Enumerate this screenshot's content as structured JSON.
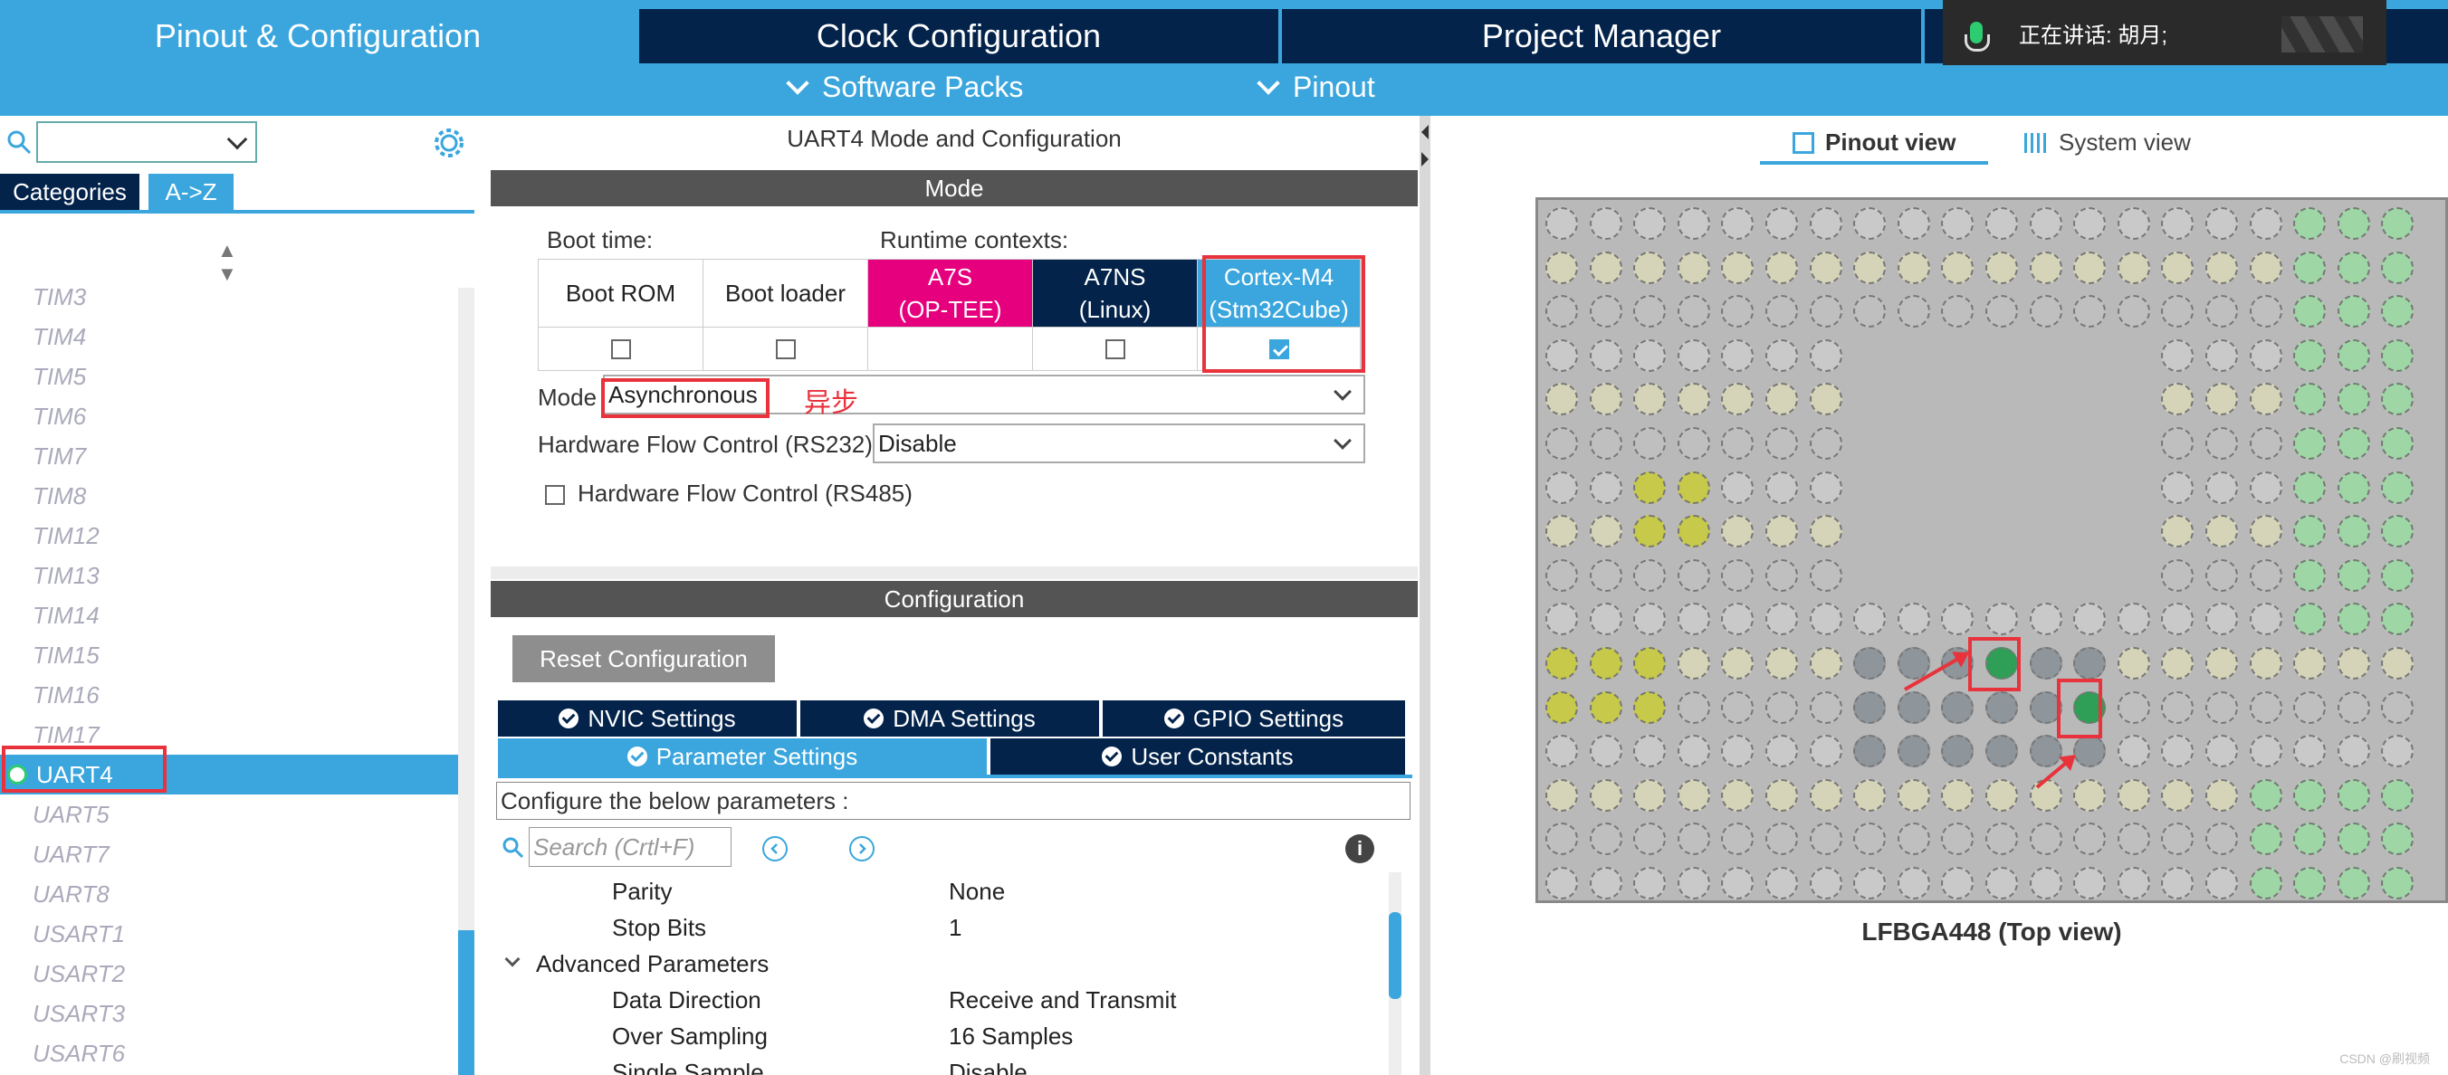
{
  "tabs": [
    "Pinout & Configuration",
    "Clock Configuration",
    "Project Manager"
  ],
  "subtabs": [
    "Software Packs",
    "Pinout"
  ],
  "voice_overlay": "正在讲话: 胡月;",
  "left": {
    "categories_tab": "Categories",
    "az_tab": "A->Z",
    "peripherals": [
      "TIM3",
      "TIM4",
      "TIM5",
      "TIM6",
      "TIM7",
      "TIM8",
      "TIM12",
      "TIM13",
      "TIM14",
      "TIM15",
      "TIM16",
      "TIM17",
      "UART4",
      "UART5",
      "UART7",
      "UART8",
      "USART1",
      "USART2",
      "USART3",
      "USART6"
    ],
    "selected": "UART4"
  },
  "mode_panel": {
    "title": "UART4 Mode and Configuration",
    "mode_header": "Mode",
    "boot_time_label": "Boot time:",
    "runtime_label": "Runtime contexts:",
    "contexts": [
      {
        "line1": "Boot ROM",
        "line2": "",
        "checked": false,
        "has_checkbox": true,
        "color": "#ffffff"
      },
      {
        "line1": "Boot loader",
        "line2": "",
        "checked": false,
        "has_checkbox": true,
        "color": "#ffffff"
      },
      {
        "line1": "A7S",
        "line2": "(OP-TEE)",
        "checked": false,
        "has_checkbox": false,
        "color": "#e6007e"
      },
      {
        "line1": "A7NS",
        "line2": "(Linux)",
        "checked": false,
        "has_checkbox": true,
        "color": "#03234b"
      },
      {
        "line1": "Cortex-M4",
        "line2": "(Stm32Cube)",
        "checked": true,
        "has_checkbox": true,
        "color": "#3aa6dd"
      }
    ],
    "mode_label": "Mode",
    "mode_value": "Asynchronous",
    "mode_annotation": "异步",
    "hw_flow_rs232_label": "Hardware Flow Control (RS232)",
    "hw_flow_rs232_value": "Disable",
    "hw_flow_rs485_label": "Hardware Flow Control (RS485)"
  },
  "config_panel": {
    "header": "Configuration",
    "reset_button": "Reset Configuration",
    "tabs_row1": [
      "NVIC Settings",
      "DMA Settings",
      "GPIO Settings"
    ],
    "tabs_row2": [
      "Parameter Settings",
      "User Constants"
    ],
    "hint": "Configure the below parameters :",
    "search_placeholder": "Search (Crtl+F)",
    "info_icon": "i",
    "params": [
      {
        "name": "Parity",
        "value": "None",
        "indent": 2
      },
      {
        "name": "Stop Bits",
        "value": "1",
        "indent": 2
      },
      {
        "name": "Advanced Parameters",
        "value": "",
        "indent": 0
      },
      {
        "name": "Data Direction",
        "value": "Receive and Transmit",
        "indent": 2
      },
      {
        "name": "Over Sampling",
        "value": "16 Samples",
        "indent": 2
      },
      {
        "name": "Single Sample",
        "value": "Disable",
        "indent": 2
      }
    ]
  },
  "right": {
    "pinout_view": "Pinout view",
    "system_view": "System view",
    "chip_caption": "LFBGA448 (Top view)"
  },
  "watermark": "CSDN @刷视频",
  "colors": {
    "accent": "#3aa6dd",
    "navy": "#03234b",
    "pink": "#e6007e",
    "annotation_red": "#e8323c"
  }
}
